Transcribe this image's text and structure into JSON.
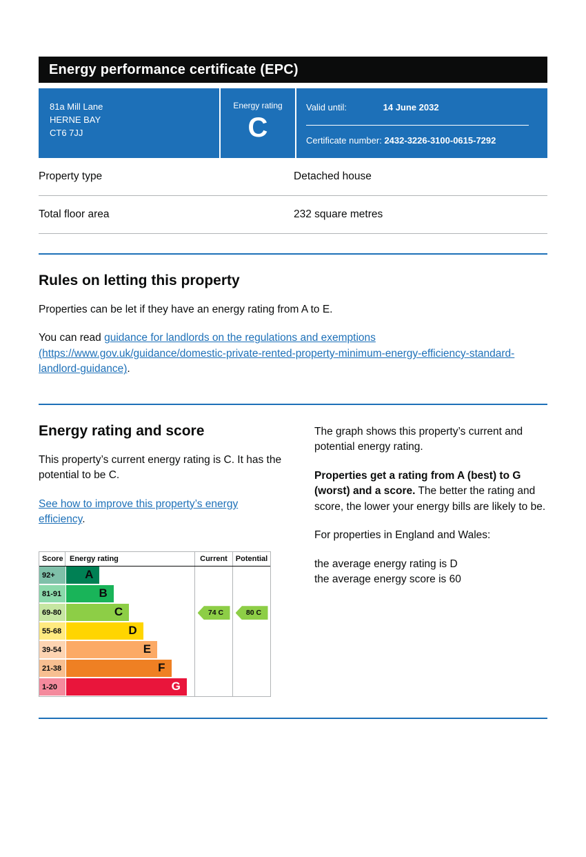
{
  "header": {
    "title": "Energy performance certificate (EPC)"
  },
  "summary": {
    "address_lines": [
      "81a Mill Lane",
      "HERNE BAY",
      "CT6 7JJ"
    ],
    "energy_rating_label": "Energy rating",
    "energy_rating": "C",
    "valid_until_label": "Valid until:",
    "valid_until": "14 June 2032",
    "certificate_number_label": "Certificate number:",
    "certificate_number": "2432-3226-3100-0615-7292"
  },
  "property_details": {
    "rows": [
      {
        "label": "Property type",
        "value": "Detached house"
      },
      {
        "label": "Total floor area",
        "value": "232 square metres"
      }
    ]
  },
  "rules_section": {
    "heading": "Rules on letting this property",
    "paragraph": "Properties can be let if they have an energy rating from A to E.",
    "read_prefix": "You can read ",
    "link_text": "guidance for landlords on the regulations and exemptions (https://www.gov.uk/guidance/domestic-private-rented-property-minimum-energy-efficiency-standard-landlord-guidance)",
    "read_suffix": "."
  },
  "rating_section": {
    "heading": "Energy rating and score",
    "paragraph": "This property’s current energy rating is C. It has the potential to be C.",
    "improve_link": "See how to improve this property’s energy efficiency",
    "improve_suffix": ".",
    "right_para1": "The graph shows this property’s current and potential energy rating.",
    "right_para2_bold": "Properties get a rating from A (best) to G (worst) and a score.",
    "right_para2_rest": " The better the rating and score, the lower your energy bills are likely to be.",
    "right_para3": "For properties in England and Wales:",
    "right_para4": "the average energy rating is D",
    "right_para5": "the average energy score is 60"
  },
  "chart_data": {
    "type": "bar",
    "title": "Energy rating and score",
    "headers": {
      "score": "Score",
      "rating": "Energy rating",
      "current": "Current",
      "potential": "Potential"
    },
    "bands": [
      {
        "letter": "A",
        "score": "92+",
        "color": "#008054",
        "tint": "#7fc0a9",
        "width_pct": 26,
        "letter_color": "#0b0c0c"
      },
      {
        "letter": "B",
        "score": "81-91",
        "color": "#19b459",
        "tint": "#8bd9ab",
        "width_pct": 37,
        "letter_color": "#0b0c0c"
      },
      {
        "letter": "C",
        "score": "69-80",
        "color": "#8dce46",
        "tint": "#c6e6a2",
        "width_pct": 49,
        "letter_color": "#0b0c0c"
      },
      {
        "letter": "D",
        "score": "55-68",
        "color": "#ffd500",
        "tint": "#ffea80",
        "width_pct": 60,
        "letter_color": "#0b0c0c"
      },
      {
        "letter": "E",
        "score": "39-54",
        "color": "#fcaa65",
        "tint": "#fdd4b2",
        "width_pct": 71,
        "letter_color": "#0b0c0c"
      },
      {
        "letter": "F",
        "score": "21-38",
        "color": "#ef8023",
        "tint": "#f7bf91",
        "width_pct": 82,
        "letter_color": "#0b0c0c"
      },
      {
        "letter": "G",
        "score": "1-20",
        "color": "#e9153b",
        "tint": "#f48a9d",
        "width_pct": 94,
        "letter_color": "#ffffff"
      }
    ],
    "current": {
      "label": "74 C",
      "value": 74,
      "band": "C",
      "color": "#8dce46"
    },
    "potential": {
      "label": "80 C",
      "value": 80,
      "band": "C",
      "color": "#8dce46"
    }
  }
}
